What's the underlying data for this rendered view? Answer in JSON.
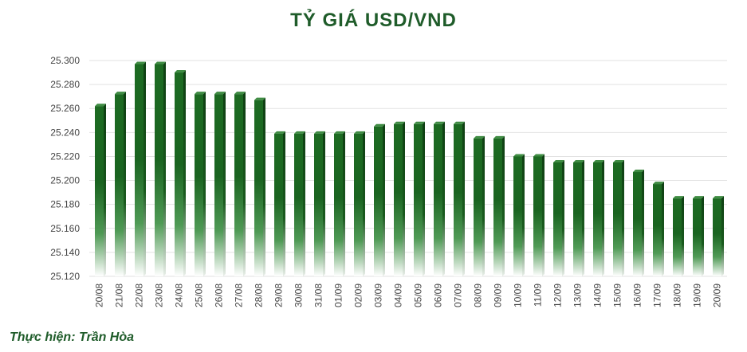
{
  "title": "TỶ GIÁ USD/VND",
  "credit": "Thực hiện: Trần Hòa",
  "colors": {
    "title": "#1f5c2a",
    "credit": "#1f5c2a",
    "bar": "#1f6e24",
    "bar_dark": "#134a17",
    "grid": "#e2e2e2"
  },
  "chart_data": {
    "type": "bar",
    "title": "TỶ GIÁ USD/VND",
    "xlabel": "",
    "ylabel": "",
    "ylim": [
      25120,
      25300
    ],
    "yticks": [
      "25.120",
      "25.140",
      "25.160",
      "25.180",
      "25.200",
      "25.220",
      "25.240",
      "25.260",
      "25.280",
      "25.300"
    ],
    "grid": true,
    "categories": [
      "20/08",
      "21/08",
      "22/08",
      "23/08",
      "24/08",
      "25/08",
      "26/08",
      "27/08",
      "28/08",
      "29/08",
      "30/08",
      "31/08",
      "01/09",
      "02/09",
      "03/09",
      "04/09",
      "05/09",
      "06/09",
      "07/09",
      "08/09",
      "09/09",
      "10/09",
      "11/09",
      "12/09",
      "13/09",
      "14/09",
      "15/09",
      "16/09",
      "17/09",
      "18/09",
      "19/09",
      "20/09"
    ],
    "values": [
      25262,
      25272,
      25297,
      25297,
      25290,
      25272,
      25272,
      25272,
      25267,
      25239,
      25239,
      25239,
      25239,
      25239,
      25245,
      25247,
      25247,
      25247,
      25247,
      25235,
      25235,
      25220,
      25220,
      25215,
      25215,
      25215,
      25215,
      25207,
      25197,
      25185,
      25185,
      25185
    ]
  }
}
